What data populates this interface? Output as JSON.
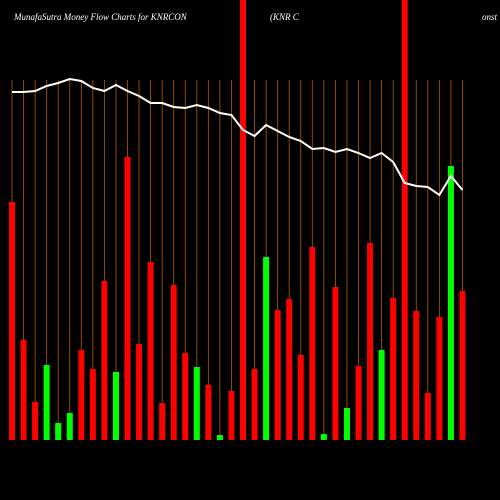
{
  "chart_data": {
    "type": "bar",
    "title": "MunafaSutra  Money Flow  Charts for KNRCON",
    "subtitle": "(KNR C",
    "subtitle_tail": "onst",
    "series": [
      {
        "name": "Money Flow",
        "values": [
          238,
          100,
          38,
          75,
          17,
          27,
          90,
          71,
          159,
          68,
          283,
          96,
          178,
          37,
          155,
          87,
          73,
          55,
          5,
          49,
          500,
          71,
          183,
          130,
          141,
          85,
          193,
          6,
          153,
          32,
          74,
          197,
          90,
          142,
          500,
          129,
          47,
          123,
          274,
          149
        ],
        "colors": [
          "#ff0000",
          "#ff0000",
          "#ff0000",
          "#00ff00",
          "#00ff00",
          "#00ff00",
          "#ff0000",
          "#ff0000",
          "#ff0000",
          "#00ff00",
          "#ff0000",
          "#ff0000",
          "#ff0000",
          "#ff0000",
          "#ff0000",
          "#ff0000",
          "#00ff00",
          "#ff0000",
          "#00ff00",
          "#ff0000",
          "#ff0000",
          "#ff0000",
          "#00ff00",
          "#ff0000",
          "#ff0000",
          "#ff0000",
          "#ff0000",
          "#00ff00",
          "#ff0000",
          "#00ff00",
          "#ff0000",
          "#ff0000",
          "#00ff00",
          "#ff0000",
          "#ff0000",
          "#ff0000",
          "#ff0000",
          "#ff0000",
          "#00ff00",
          "#ff0000"
        ]
      },
      {
        "name": "Price",
        "color": "#ffffff",
        "values": [
          348,
          348,
          349,
          354,
          357,
          361,
          359,
          352,
          349,
          355,
          349,
          344,
          337,
          337,
          333,
          332,
          335,
          332,
          327,
          325,
          310,
          304,
          315,
          309,
          303,
          299,
          291,
          292,
          288,
          291,
          287,
          282,
          287,
          278,
          257,
          254,
          253,
          245,
          264,
          250
        ]
      }
    ],
    "grid_color": "#b35a00"
  }
}
